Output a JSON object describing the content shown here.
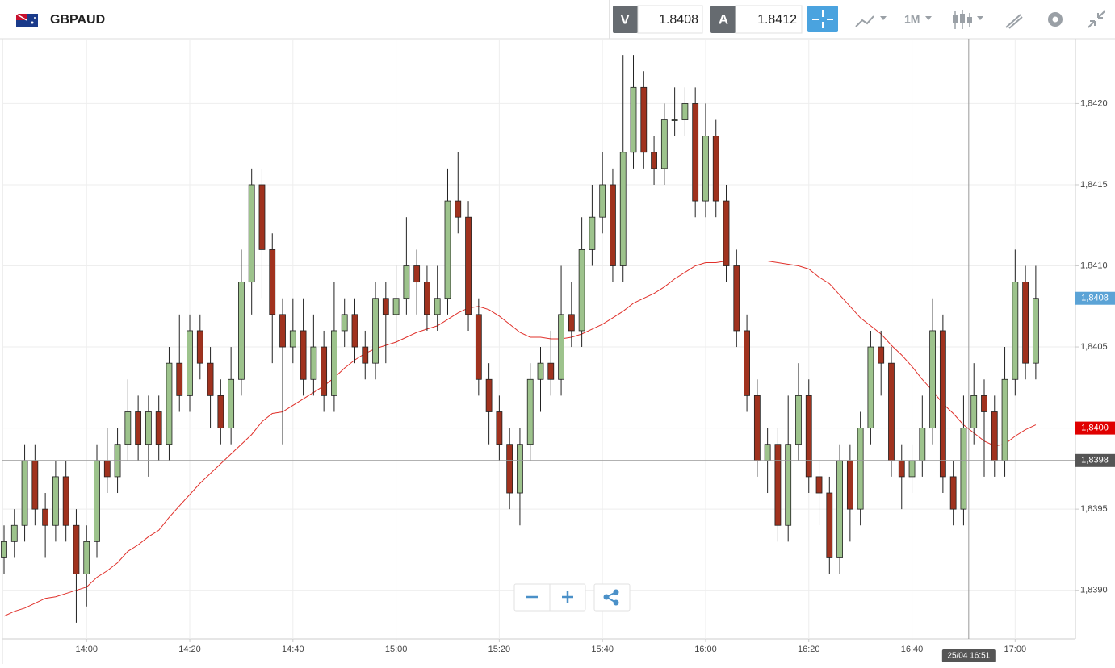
{
  "header": {
    "symbol": "GBPAUD",
    "bid_label": "V",
    "bid": "1.8408",
    "ask_label": "A",
    "ask": "1.8412",
    "timeframe": "1M"
  },
  "chart_data": {
    "type": "candlestick",
    "x": [
      "13:44",
      "13:46",
      "13:48",
      "13:50",
      "13:52",
      "13:54",
      "13:56",
      "13:58",
      "14:00",
      "14:02",
      "14:04",
      "14:06",
      "14:08",
      "14:10",
      "14:12",
      "14:14",
      "14:16",
      "14:18",
      "14:20",
      "14:22",
      "14:24",
      "14:26",
      "14:28",
      "14:30",
      "14:32",
      "14:34",
      "14:36",
      "14:38",
      "14:40",
      "14:42",
      "14:44",
      "14:46",
      "14:48",
      "14:50",
      "14:52",
      "14:54",
      "14:56",
      "14:58",
      "15:00",
      "15:02",
      "15:04",
      "15:06",
      "15:08",
      "15:10",
      "15:12",
      "15:14",
      "15:16",
      "15:18",
      "15:20",
      "15:22",
      "15:24",
      "15:26",
      "15:28",
      "15:30",
      "15:32",
      "15:34",
      "15:36",
      "15:38",
      "15:40",
      "15:42",
      "15:44",
      "15:46",
      "15:48",
      "15:50",
      "15:52",
      "15:54",
      "15:56",
      "15:58",
      "16:00",
      "16:02",
      "16:04",
      "16:06",
      "16:08",
      "16:10",
      "16:12",
      "16:14",
      "16:16",
      "16:18",
      "16:20",
      "16:22",
      "16:24",
      "16:26",
      "16:28",
      "16:30",
      "16:32",
      "16:34",
      "16:36",
      "16:38",
      "16:40",
      "16:42",
      "16:44",
      "16:46",
      "16:48",
      "16:50",
      "16:52",
      "16:54",
      "16:56",
      "16:58",
      "17:00",
      "17:02",
      "17:04"
    ],
    "open": [
      1.8392,
      1.8393,
      1.8394,
      1.8398,
      1.8395,
      1.8394,
      1.8397,
      1.8394,
      1.8391,
      1.8393,
      1.8398,
      1.8397,
      1.8399,
      1.8401,
      1.8399,
      1.8401,
      1.8399,
      1.8404,
      1.8402,
      1.8406,
      1.8404,
      1.8402,
      1.84,
      1.8403,
      1.8409,
      1.8415,
      1.8411,
      1.8407,
      1.8405,
      1.8406,
      1.8403,
      1.8405,
      1.8402,
      1.8406,
      1.8407,
      1.8405,
      1.8404,
      1.8408,
      1.8407,
      1.8408,
      1.841,
      1.8409,
      1.8407,
      1.8408,
      1.8414,
      1.8413,
      1.8407,
      1.8403,
      1.8401,
      1.8399,
      1.8396,
      1.8399,
      1.8403,
      1.8404,
      1.8403,
      1.8407,
      1.8406,
      1.8411,
      1.8413,
      1.8415,
      1.841,
      1.8417,
      1.8421,
      1.8417,
      1.8416,
      1.8419,
      1.8419,
      1.842,
      1.8414,
      1.8418,
      1.8414,
      1.841,
      1.8406,
      1.8402,
      1.8398,
      1.8399,
      1.8394,
      1.8399,
      1.8402,
      1.8397,
      1.8396,
      1.8392,
      1.8398,
      1.8395,
      1.84,
      1.8405,
      1.8404,
      1.8398,
      1.8397,
      1.8398,
      1.84,
      1.8406,
      1.8397,
      1.8395,
      1.84,
      1.8402,
      1.8401,
      1.8398,
      1.8403,
      1.8409,
      1.8404
    ],
    "high": [
      1.8394,
      1.8395,
      1.8399,
      1.8399,
      1.8396,
      1.8398,
      1.8398,
      1.8395,
      1.8394,
      1.8399,
      1.84,
      1.84,
      1.8403,
      1.8402,
      1.8402,
      1.8402,
      1.8405,
      1.8407,
      1.8407,
      1.8407,
      1.8405,
      1.8403,
      1.8405,
      1.8411,
      1.8416,
      1.8416,
      1.8412,
      1.8408,
      1.8408,
      1.8408,
      1.8407,
      1.8406,
      1.8409,
      1.8408,
      1.8408,
      1.8406,
      1.8409,
      1.8409,
      1.841,
      1.8413,
      1.8411,
      1.841,
      1.841,
      1.8416,
      1.8417,
      1.8414,
      1.8408,
      1.8404,
      1.8402,
      1.84,
      1.84,
      1.8404,
      1.8405,
      1.8406,
      1.841,
      1.8409,
      1.8413,
      1.8415,
      1.8417,
      1.8416,
      1.8423,
      1.8423,
      1.8422,
      1.8418,
      1.842,
      1.8421,
      1.8421,
      1.8421,
      1.842,
      1.8419,
      1.8415,
      1.8411,
      1.8407,
      1.8403,
      1.84,
      1.84,
      1.8402,
      1.8404,
      1.8403,
      1.8398,
      1.8397,
      1.8399,
      1.8399,
      1.8401,
      1.8406,
      1.8406,
      1.8405,
      1.8399,
      1.8399,
      1.8402,
      1.8408,
      1.8407,
      1.8398,
      1.8402,
      1.8404,
      1.8403,
      1.8402,
      1.8405,
      1.8411,
      1.841,
      1.841
    ],
    "low": [
      1.8391,
      1.8392,
      1.8393,
      1.8394,
      1.8392,
      1.8393,
      1.8393,
      1.8388,
      1.8389,
      1.8392,
      1.8396,
      1.8396,
      1.8398,
      1.8398,
      1.8397,
      1.8398,
      1.8398,
      1.8401,
      1.8401,
      1.8403,
      1.84,
      1.8399,
      1.8399,
      1.8402,
      1.8407,
      1.8408,
      1.8404,
      1.8399,
      1.8404,
      1.8402,
      1.8402,
      1.8401,
      1.8401,
      1.8405,
      1.8404,
      1.8403,
      1.8403,
      1.8404,
      1.8405,
      1.8407,
      1.8407,
      1.8406,
      1.8406,
      1.8407,
      1.8412,
      1.8406,
      1.8402,
      1.8399,
      1.8398,
      1.8395,
      1.8394,
      1.8398,
      1.8401,
      1.8402,
      1.8402,
      1.8405,
      1.8405,
      1.841,
      1.8412,
      1.8409,
      1.8409,
      1.8416,
      1.8416,
      1.8415,
      1.8415,
      1.8418,
      1.8418,
      1.8413,
      1.8413,
      1.8413,
      1.8409,
      1.8405,
      1.8401,
      1.8397,
      1.8396,
      1.8393,
      1.8393,
      1.8398,
      1.8396,
      1.8394,
      1.8391,
      1.8391,
      1.8393,
      1.8394,
      1.8399,
      1.8402,
      1.8397,
      1.8395,
      1.8396,
      1.8397,
      1.8399,
      1.8396,
      1.8394,
      1.8394,
      1.8399,
      1.8397,
      1.8397,
      1.8397,
      1.8402,
      1.8403,
      1.8403
    ],
    "close": [
      1.8393,
      1.8394,
      1.8398,
      1.8395,
      1.8394,
      1.8397,
      1.8394,
      1.8391,
      1.8393,
      1.8398,
      1.8397,
      1.8399,
      1.8401,
      1.8399,
      1.8401,
      1.8399,
      1.8404,
      1.8402,
      1.8406,
      1.8404,
      1.8402,
      1.84,
      1.8403,
      1.8409,
      1.8415,
      1.8411,
      1.8407,
      1.8405,
      1.8406,
      1.8403,
      1.8405,
      1.8402,
      1.8406,
      1.8407,
      1.8405,
      1.8404,
      1.8408,
      1.8407,
      1.8408,
      1.841,
      1.8409,
      1.8407,
      1.8408,
      1.8414,
      1.8413,
      1.8407,
      1.8403,
      1.8401,
      1.8399,
      1.8396,
      1.8399,
      1.8403,
      1.8404,
      1.8403,
      1.8407,
      1.8406,
      1.8411,
      1.8413,
      1.8415,
      1.841,
      1.8417,
      1.8421,
      1.8417,
      1.8416,
      1.8419,
      1.8419,
      1.842,
      1.8414,
      1.8418,
      1.8414,
      1.841,
      1.8406,
      1.8402,
      1.8398,
      1.8399,
      1.8394,
      1.8399,
      1.8402,
      1.8397,
      1.8396,
      1.8392,
      1.8398,
      1.8395,
      1.84,
      1.8405,
      1.8404,
      1.8398,
      1.8397,
      1.8398,
      1.84,
      1.8406,
      1.8397,
      1.8395,
      1.84,
      1.8402,
      1.8401,
      1.8398,
      1.8403,
      1.8409,
      1.8404,
      1.8408
    ],
    "up_color": "#9dc38c",
    "down_color": "#a0321e",
    "moving_average": {
      "color": "#e0302a",
      "values": [
        1.83884,
        1.83887,
        1.83889,
        1.83892,
        1.83895,
        1.83896,
        1.83898,
        1.839,
        1.83902,
        1.83908,
        1.83912,
        1.83917,
        1.83924,
        1.83928,
        1.83933,
        1.83937,
        1.83945,
        1.83952,
        1.83959,
        1.83966,
        1.83972,
        1.83978,
        1.83984,
        1.8399,
        1.83996,
        1.84004,
        1.84009,
        1.8401,
        1.84014,
        1.84018,
        1.84022,
        1.84026,
        1.84031,
        1.84037,
        1.84042,
        1.84046,
        1.84049,
        1.84051,
        1.84053,
        1.84056,
        1.84059,
        1.84061,
        1.84063,
        1.84067,
        1.84071,
        1.84074,
        1.84075,
        1.84073,
        1.84069,
        1.84064,
        1.84059,
        1.84056,
        1.84056,
        1.84055,
        1.84055,
        1.84056,
        1.84058,
        1.84061,
        1.84064,
        1.84068,
        1.84072,
        1.84077,
        1.8408,
        1.84083,
        1.84087,
        1.84092,
        1.84096,
        1.841,
        1.84102,
        1.84102,
        1.84103,
        1.84103,
        1.84103,
        1.84103,
        1.84103,
        1.84102,
        1.84101,
        1.841,
        1.84098,
        1.84093,
        1.84089,
        1.84082,
        1.84075,
        1.84068,
        1.84063,
        1.84058,
        1.84051,
        1.84045,
        1.84038,
        1.8403,
        1.84023,
        1.84015,
        1.84009,
        1.84002,
        1.83997,
        1.83992,
        1.83989,
        1.8399,
        1.83995,
        1.83999,
        1.84002
      ]
    },
    "xlim": [
      "13:44",
      "17:12"
    ],
    "xticks": [
      "14:00",
      "14:20",
      "14:40",
      "15:00",
      "15:20",
      "15:40",
      "16:00",
      "16:20",
      "16:40",
      "17:00"
    ],
    "ylim": [
      1.8387,
      1.8424
    ],
    "yticks": [
      {
        "value": 1.839,
        "label": "1,8390"
      },
      {
        "value": 1.8395,
        "label": "1,8395"
      },
      {
        "value": 1.84,
        "label": "1,8400"
      },
      {
        "value": 1.8405,
        "label": "1,8405"
      },
      {
        "value": 1.841,
        "label": "1,8410"
      },
      {
        "value": 1.8415,
        "label": "1,8415"
      },
      {
        "value": 1.842,
        "label": "1,8420"
      }
    ],
    "grid": true,
    "price_markers": [
      {
        "value": 1.8408,
        "label": "1,8408",
        "color": "#5ba3d6"
      },
      {
        "value": 1.84,
        "label": "1,8400",
        "color": "#e00000"
      }
    ],
    "crosshair": {
      "x": "16:51",
      "x_label": "25/04 16:51",
      "y": 1.8398,
      "y_label": "1,8398"
    }
  }
}
